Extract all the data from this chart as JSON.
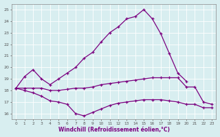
{
  "xlabel": "Windchill (Refroidissement éolien,°C)",
  "x": [
    0,
    1,
    2,
    3,
    4,
    5,
    6,
    7,
    8,
    9,
    10,
    11,
    12,
    13,
    14,
    15,
    16,
    17,
    18,
    19,
    20,
    21,
    22,
    23
  ],
  "top_line": [
    18.2,
    19.2,
    19.8,
    19.0,
    18.5,
    19.0,
    19.5,
    20.0,
    20.8,
    21.3,
    22.2,
    23.0,
    23.5,
    24.2,
    24.4,
    25.0,
    24.2,
    22.9,
    21.2,
    19.5,
    18.8,
    null,
    null,
    null
  ],
  "mid_line": [
    18.2,
    18.2,
    18.2,
    18.2,
    18.0,
    18.0,
    18.1,
    18.2,
    18.2,
    18.3,
    18.5,
    18.6,
    18.7,
    18.8,
    18.9,
    19.0,
    19.1,
    19.1,
    19.1,
    19.1,
    18.3,
    18.3,
    17.0,
    16.8
  ],
  "bot_line": [
    18.2,
    18.0,
    17.8,
    17.5,
    17.1,
    17.0,
    16.8,
    16.0,
    15.8,
    16.1,
    16.4,
    16.7,
    16.9,
    17.0,
    17.1,
    17.2,
    17.2,
    17.2,
    17.1,
    17.0,
    16.8,
    16.8,
    16.5,
    16.5
  ],
  "bg_color": "#d8eef0",
  "grid_color": "#b8d8da",
  "line_color": "#7b0080",
  "ylim": [
    15.5,
    25.5
  ],
  "yticks": [
    16,
    17,
    18,
    19,
    20,
    21,
    22,
    23,
    24,
    25
  ],
  "xlim": [
    -0.5,
    23.5
  ]
}
